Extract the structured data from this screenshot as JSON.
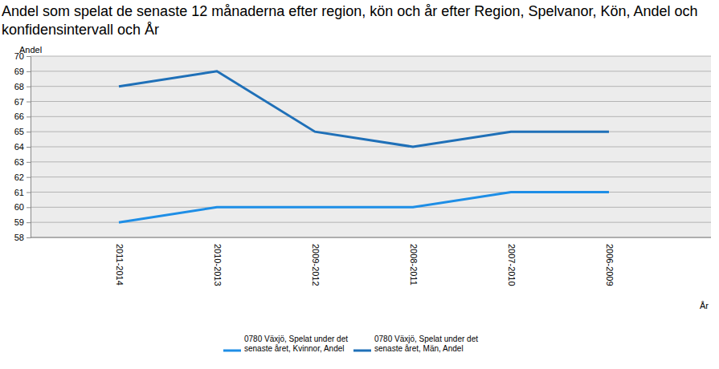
{
  "chart_data": {
    "type": "line",
    "title": "Andel som spelat de senaste 12 månaderna efter region, kön och år efter Region, Spelvanor, Kön, Andel och konfidensintervall och År",
    "y_label": "Andel",
    "x_label": "År",
    "categories": [
      "2011-2014",
      "2010-2013",
      "2009-2012",
      "2008-2011",
      "2007-2010",
      "2006-2009"
    ],
    "series": [
      {
        "name": "0780 Växjö, Spelat under det senaste året, Kvinnor, Andel",
        "color": "#1e8ee6",
        "values": [
          59,
          60,
          60,
          60,
          61,
          61
        ]
      },
      {
        "name": "0780 Växjö, Spelat under det senaste året, Män, Andel",
        "color": "#1f70b8",
        "values": [
          68,
          69,
          65,
          64,
          65,
          65
        ]
      }
    ],
    "ylim": [
      58,
      70
    ],
    "yticks": [
      58,
      59,
      60,
      61,
      62,
      63,
      64,
      65,
      66,
      67,
      68,
      69,
      70
    ],
    "grid": true,
    "legend": "bottom"
  }
}
